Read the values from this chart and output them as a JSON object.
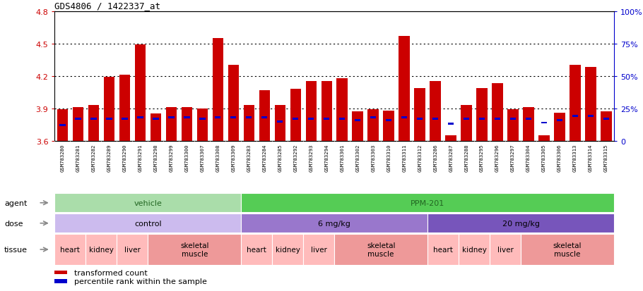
{
  "title": "GDS4806 / 1422337_at",
  "samples": [
    "GSM783280",
    "GSM783281",
    "GSM783282",
    "GSM783289",
    "GSM783290",
    "GSM783291",
    "GSM783298",
    "GSM783299",
    "GSM783300",
    "GSM783307",
    "GSM783308",
    "GSM783309",
    "GSM783283",
    "GSM783284",
    "GSM783285",
    "GSM783292",
    "GSM783293",
    "GSM783294",
    "GSM783301",
    "GSM783302",
    "GSM783303",
    "GSM783310",
    "GSM783311",
    "GSM783312",
    "GSM783286",
    "GSM783287",
    "GSM783288",
    "GSM783295",
    "GSM783296",
    "GSM783297",
    "GSM783304",
    "GSM783305",
    "GSM783306",
    "GSM783313",
    "GSM783314",
    "GSM783315"
  ],
  "transformed_count": [
    3.89,
    3.91,
    3.93,
    4.19,
    4.21,
    4.49,
    3.85,
    3.91,
    3.91,
    3.9,
    4.55,
    4.3,
    3.93,
    4.07,
    3.93,
    4.08,
    4.15,
    4.15,
    4.18,
    3.87,
    3.89,
    3.88,
    4.57,
    4.09,
    4.15,
    3.65,
    3.93,
    4.09,
    4.13,
    3.89,
    3.91,
    3.65,
    3.86,
    4.3,
    4.28,
    3.87
  ],
  "percentile": [
    12,
    17,
    17,
    17,
    17,
    18,
    17,
    18,
    18,
    17,
    18,
    18,
    18,
    18,
    15,
    17,
    17,
    17,
    17,
    16,
    18,
    16,
    18,
    17,
    17,
    13,
    17,
    17,
    17,
    17,
    17,
    14,
    16,
    19,
    19,
    17
  ],
  "ylim_left": [
    3.6,
    4.8
  ],
  "ylim_right": [
    0,
    100
  ],
  "yticks_left": [
    3.6,
    3.9,
    4.2,
    4.5,
    4.8
  ],
  "yticks_right": [
    0,
    25,
    50,
    75,
    100
  ],
  "bar_color": "#CC0000",
  "percentile_color": "#0000CC",
  "bar_width": 0.7,
  "agent_labels": [
    {
      "label": "vehicle",
      "start": 0,
      "end": 11,
      "color": "#AADDAA"
    },
    {
      "label": "PPM-201",
      "start": 12,
      "end": 35,
      "color": "#55CC55"
    }
  ],
  "dose_labels": [
    {
      "label": "control",
      "start": 0,
      "end": 11,
      "color": "#CCBBEE"
    },
    {
      "label": "6 mg/kg",
      "start": 12,
      "end": 23,
      "color": "#9977CC"
    },
    {
      "label": "20 mg/kg",
      "start": 24,
      "end": 35,
      "color": "#7755BB"
    }
  ],
  "tissue_labels": [
    {
      "label": "heart",
      "start": 0,
      "end": 1,
      "color": "#FFBBBB"
    },
    {
      "label": "kidney",
      "start": 2,
      "end": 3,
      "color": "#FFBBBB"
    },
    {
      "label": "liver",
      "start": 4,
      "end": 5,
      "color": "#FFBBBB"
    },
    {
      "label": "skeletal\nmuscle",
      "start": 6,
      "end": 11,
      "color": "#EE9999"
    },
    {
      "label": "heart",
      "start": 12,
      "end": 13,
      "color": "#FFBBBB"
    },
    {
      "label": "kidney",
      "start": 14,
      "end": 15,
      "color": "#FFBBBB"
    },
    {
      "label": "liver",
      "start": 16,
      "end": 17,
      "color": "#FFBBBB"
    },
    {
      "label": "skeletal\nmuscle",
      "start": 18,
      "end": 23,
      "color": "#EE9999"
    },
    {
      "label": "heart",
      "start": 24,
      "end": 25,
      "color": "#FFBBBB"
    },
    {
      "label": "kidney",
      "start": 26,
      "end": 27,
      "color": "#FFBBBB"
    },
    {
      "label": "liver",
      "start": 28,
      "end": 29,
      "color": "#FFBBBB"
    },
    {
      "label": "skeletal\nmuscle",
      "start": 30,
      "end": 35,
      "color": "#EE9999"
    }
  ],
  "legend_bar_color": "#CC0000",
  "legend_pct_color": "#0000CC",
  "background_color": "#FFFFFF",
  "xtick_bg_color": "#CCCCCC",
  "right_axis_color": "#0000CC",
  "left_axis_color": "#CC0000",
  "row_label_color": "#444444",
  "arrow_color": "#888888"
}
